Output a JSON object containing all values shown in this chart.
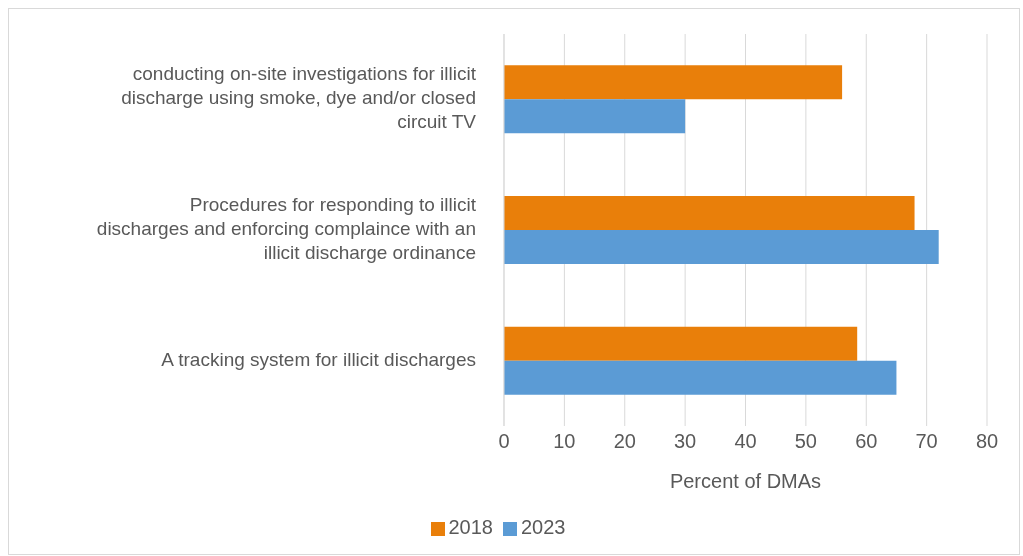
{
  "chart_data": {
    "type": "bar",
    "orientation": "horizontal",
    "categories": [
      "conducting on-site investigations for illicit discharge using smoke, dye and/or closed circuit TV",
      "Procedures for responding to illicit discharges and enforcing complaince with an illicit discharge ordinance",
      "A tracking system for illicit discharges"
    ],
    "series": [
      {
        "name": "2018",
        "color": "#e97f0a",
        "values": [
          56,
          68,
          58.5
        ]
      },
      {
        "name": "2023",
        "color": "#5b9bd5",
        "values": [
          30,
          72,
          65
        ]
      }
    ],
    "xlabel": "Percent of DMAs",
    "xlim": [
      0,
      80
    ],
    "xticks": [
      0,
      10,
      20,
      30,
      40,
      50,
      60,
      70,
      80
    ],
    "grid": "x",
    "legend": "bottom"
  }
}
